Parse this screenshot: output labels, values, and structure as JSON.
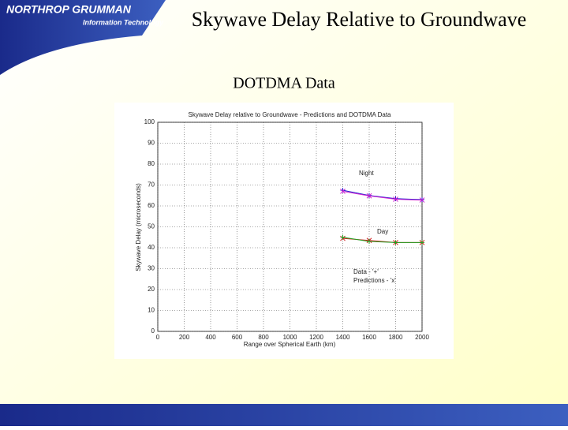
{
  "header": {
    "logo": "NORTHROP GRUMMAN",
    "logo_sub": "Information Technology",
    "title": "Skywave Delay Relative to Groundwave"
  },
  "subtitle": "DOTDMA Data",
  "chart_data": {
    "type": "line",
    "title": "Skywave Delay relative to Groundwave - Predictions and DOTDMA Data",
    "x_label": "Range over Spherical Earth (km)",
    "y_label": "Skywave Delay (microseconds)",
    "x": [
      1400,
      1600,
      1800,
      2000
    ],
    "series": [
      {
        "color": "#2020d0",
        "marker": "+",
        "values": [
          67.5,
          65,
          63.5,
          63
        ]
      },
      {
        "color": "#d020d0",
        "marker": "x",
        "values": [
          67,
          64.8,
          63.2,
          62.8
        ]
      },
      {
        "color": "#d02020",
        "marker": "x",
        "values": [
          44.5,
          43.5,
          42.5,
          42.5
        ]
      },
      {
        "color": "#20a020",
        "marker": "+",
        "values": [
          45,
          43,
          42.5,
          42.5
        ]
      }
    ],
    "annotations": [
      "Night",
      "Day",
      "Data - '+'",
      "Predictions - 'x'"
    ],
    "xlim": [
      0,
      2000
    ],
    "xticks": [
      0,
      200,
      400,
      600,
      800,
      1000,
      1200,
      1400,
      1600,
      1800,
      2000
    ],
    "ylim": [
      0,
      100
    ],
    "yticks": [
      0,
      10,
      20,
      30,
      40,
      50,
      60,
      70,
      80,
      90,
      100
    ],
    "grid": true
  }
}
